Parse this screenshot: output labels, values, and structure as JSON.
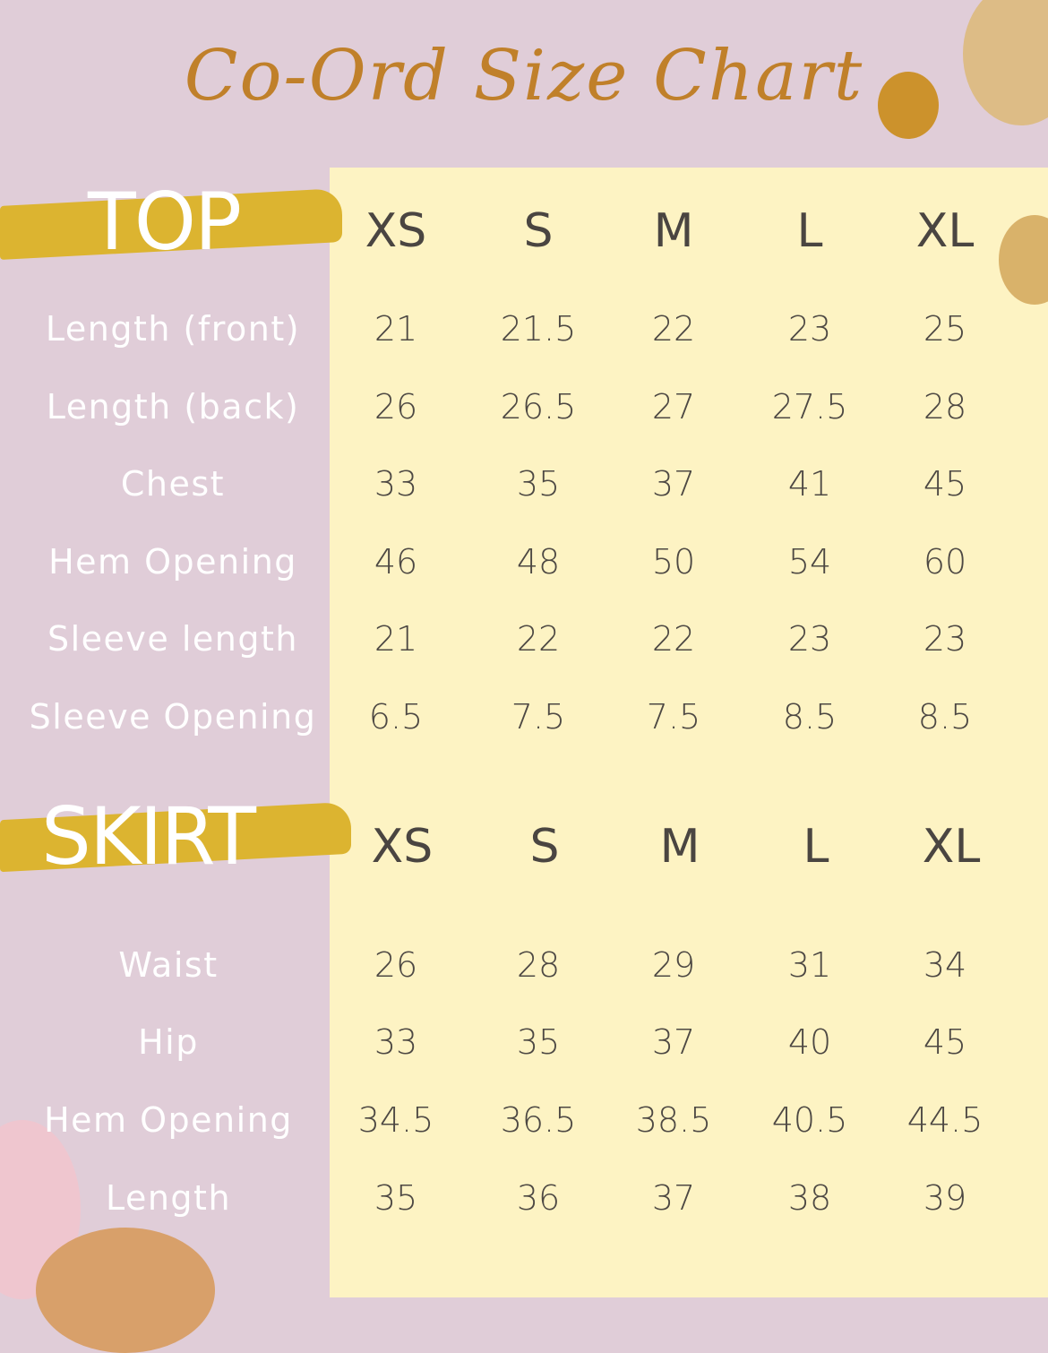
{
  "title": "Co-Ord Size Chart",
  "colors": {
    "background": "#e0cdd8",
    "panel": "#fdf3c3",
    "title": "#c0802a",
    "accent_stroke": "#dcb430",
    "text": "#4d4843"
  },
  "sizes": [
    "XS",
    "S",
    "M",
    "L",
    "XL"
  ],
  "top": {
    "heading": "TOP",
    "rows": [
      {
        "label": "Length (front)",
        "values": [
          "21",
          "21.5",
          "22",
          "23",
          "25"
        ]
      },
      {
        "label": "Length (back)",
        "values": [
          "26",
          "26.5",
          "27",
          "27.5",
          "28"
        ]
      },
      {
        "label": "Chest",
        "values": [
          "33",
          "35",
          "37",
          "41",
          "45"
        ]
      },
      {
        "label": "Hem Opening",
        "values": [
          "46",
          "48",
          "50",
          "54",
          "60"
        ]
      },
      {
        "label": "Sleeve length",
        "values": [
          "21",
          "22",
          "22",
          "23",
          "23"
        ]
      },
      {
        "label": "Sleeve Opening",
        "values": [
          "6.5",
          "7.5",
          "7.5",
          "8.5",
          "8.5"
        ]
      }
    ]
  },
  "skirt": {
    "heading": "SKIRT",
    "rows": [
      {
        "label": "Waist",
        "values": [
          "26",
          "28",
          "29",
          "31",
          "34"
        ]
      },
      {
        "label": "Hip",
        "values": [
          "33",
          "35",
          "37",
          "40",
          "45"
        ]
      },
      {
        "label": "Hem Opening",
        "values": [
          "34.5",
          "36.5",
          "38.5",
          "40.5",
          "44.5"
        ]
      },
      {
        "label": "Length",
        "values": [
          "35",
          "36",
          "37",
          "38",
          "39"
        ]
      }
    ]
  }
}
